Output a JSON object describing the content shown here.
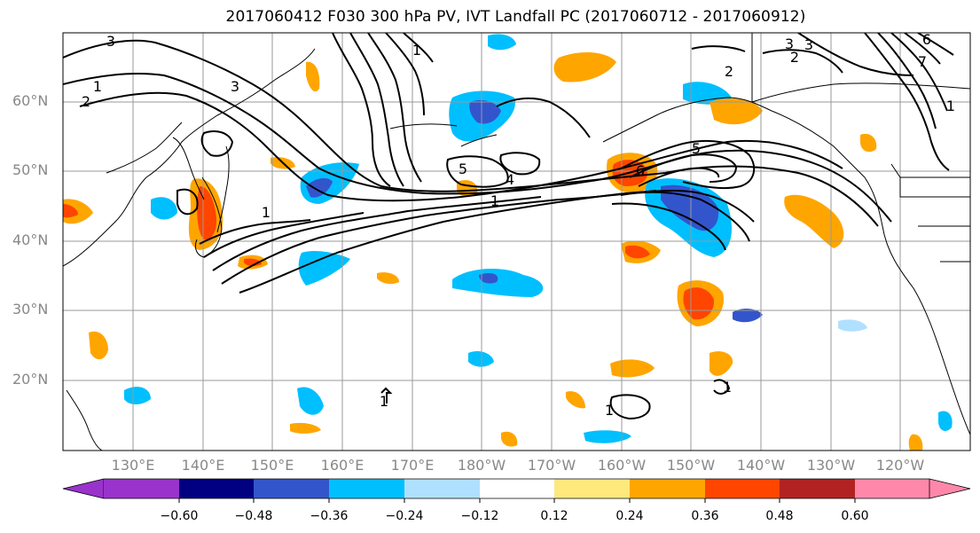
{
  "title": "2017060412 F030 300 hPa PV, IVT Landfall PC (2017060712 - 2017060912)",
  "lat_labels": [
    "60°N",
    "50°N",
    "40°N",
    "30°N",
    "20°N"
  ],
  "lon_labels": [
    "130°E",
    "140°E",
    "150°E",
    "160°E",
    "170°E",
    "180°W",
    "170°W",
    "160°W",
    "150°W",
    "140°W",
    "130°W",
    "120°W"
  ],
  "contour_labels": [
    "3",
    "1",
    "2",
    "3",
    "1",
    "5",
    "6",
    "4",
    "1",
    "2",
    "3",
    "5",
    "1",
    "2",
    "3",
    "6",
    "7",
    "1",
    "1",
    "1",
    "1"
  ],
  "colorbar": {
    "ticks": [
      "−0.60",
      "−0.48",
      "−0.36",
      "−0.24",
      "−0.12",
      "0.12",
      "0.24",
      "0.36",
      "0.48",
      "0.60"
    ],
    "colors": [
      "#9933cc",
      "#000080",
      "#3355cc",
      "#00bfff",
      "#b0e0ff",
      "#ffffff",
      "#ffe87c",
      "#ffa500",
      "#ff4500",
      "#b22222",
      "#ff88aa"
    ]
  },
  "colors": {
    "frame": "#000000",
    "grid": "#999999",
    "coast": "#000000",
    "label": "#888888"
  }
}
